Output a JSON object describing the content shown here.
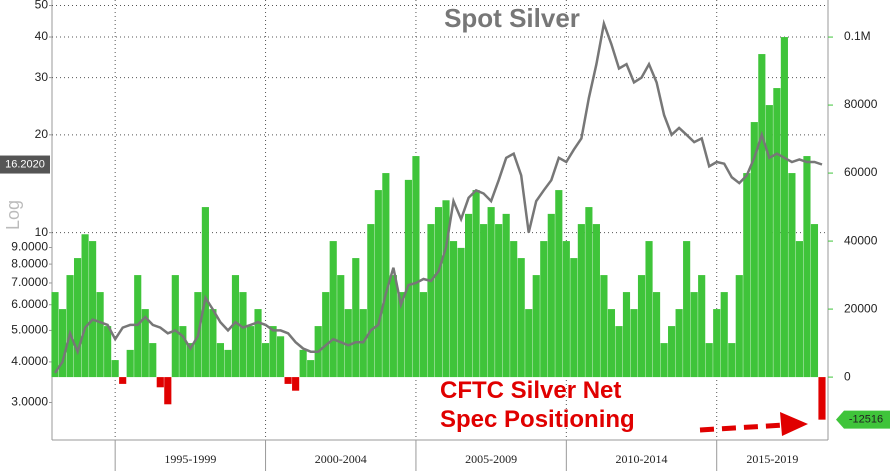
{
  "chart_data": {
    "type": "bar-line",
    "title": "Spot Silver",
    "y_axis_label": "Log",
    "log_scale": true,
    "grid": true,
    "xlim": [
      1992.9,
      2018.7
    ],
    "xticks": [
      1995,
      2000,
      2005,
      2010,
      2015
    ],
    "x_periods": [
      "1995-1999",
      "2000-2004",
      "2005-2009",
      "2010-2014",
      "2015-2019"
    ],
    "ylim": [
      2.3,
      52
    ],
    "yticks": [
      {
        "value": 3,
        "label": "3.0000"
      },
      {
        "value": 4,
        "label": "4.0000"
      },
      {
        "value": 5,
        "label": "5.0000"
      },
      {
        "value": 6,
        "label": "6.0000"
      },
      {
        "value": 7,
        "label": "7.0000"
      },
      {
        "value": 8,
        "label": "8.0000"
      },
      {
        "value": 9,
        "label": "9.0000"
      },
      10,
      20,
      30,
      40,
      50
    ],
    "y2lim": [
      -18500,
      110900
    ],
    "y2ticks": [
      0,
      20000,
      40000,
      60000,
      80000,
      {
        "value": 100000,
        "label": "0.1M"
      }
    ],
    "x": [
      1993,
      1993.25,
      1993.5,
      1993.75,
      1994,
      1994.25,
      1994.5,
      1994.75,
      1995,
      1995.25,
      1995.5,
      1995.75,
      1996,
      1996.25,
      1996.5,
      1996.75,
      1997,
      1997.25,
      1997.5,
      1997.75,
      1998,
      1998.25,
      1998.5,
      1998.75,
      1999,
      1999.25,
      1999.5,
      1999.75,
      2000,
      2000.25,
      2000.5,
      2000.75,
      2001,
      2001.25,
      2001.5,
      2001.75,
      2002,
      2002.25,
      2002.5,
      2002.75,
      2003,
      2003.25,
      2003.5,
      2003.75,
      2004,
      2004.25,
      2004.5,
      2004.75,
      2005,
      2005.25,
      2005.5,
      2005.75,
      2006,
      2006.25,
      2006.5,
      2006.75,
      2007,
      2007.25,
      2007.5,
      2007.75,
      2008,
      2008.25,
      2008.5,
      2008.75,
      2009,
      2009.25,
      2009.5,
      2009.75,
      2010,
      2010.25,
      2010.5,
      2010.75,
      2011,
      2011.25,
      2011.5,
      2011.75,
      2012,
      2012.25,
      2012.5,
      2012.75,
      2013,
      2013.25,
      2013.5,
      2013.75,
      2014,
      2014.25,
      2014.5,
      2014.75,
      2015,
      2015.25,
      2015.5,
      2015.75,
      2016,
      2016.25,
      2016.5,
      2016.75,
      2017,
      2017.25,
      2017.5,
      2017.75,
      2018,
      2018.25,
      2018.5
    ],
    "series": [
      {
        "name": "Spot Silver",
        "type": "line",
        "axis": "y",
        "color": "#777777",
        "values": [
          3.7,
          4.0,
          4.9,
          4.3,
          5.1,
          5.4,
          5.3,
          5.2,
          4.7,
          5.1,
          5.2,
          5.2,
          5.5,
          5.2,
          5.1,
          4.9,
          5.0,
          4.8,
          4.4,
          4.8,
          6.3,
          5.8,
          5.3,
          5.0,
          5.3,
          5.1,
          5.2,
          5.3,
          5.2,
          5.0,
          5.0,
          4.9,
          4.6,
          4.4,
          4.3,
          4.3,
          4.5,
          4.7,
          4.6,
          4.5,
          4.6,
          4.6,
          5.0,
          5.2,
          6.5,
          7.8,
          6.0,
          6.9,
          7.0,
          7.2,
          7.1,
          7.6,
          9.0,
          12.5,
          11.0,
          12.8,
          13.5,
          13.2,
          12.5,
          14.5,
          17.0,
          17.5,
          15.0,
          10.0,
          12.5,
          13.5,
          14.5,
          17.0,
          16.5,
          18.0,
          19.5,
          26.0,
          33,
          44,
          38,
          32,
          33,
          29,
          30,
          33,
          29,
          23,
          20,
          21,
          20,
          19,
          19.5,
          16,
          16.5,
          16.3,
          14.8,
          14.2,
          15,
          17,
          20,
          17,
          17.5,
          17,
          16.5,
          16.8,
          16.5,
          16.5,
          16.202
        ],
        "last_label": "16.2020"
      },
      {
        "name": "CFTC Silver Net Spec Positioning",
        "type": "bar",
        "axis": "y2",
        "color": "#3fc43a",
        "negative_color": "#e00000",
        "values": [
          25000,
          20000,
          30000,
          35000,
          42000,
          40000,
          25000,
          15000,
          5000,
          -2000,
          8000,
          30000,
          20000,
          10000,
          -3000,
          -8000,
          30000,
          15000,
          10000,
          25000,
          50000,
          20000,
          10000,
          8000,
          30000,
          25000,
          15000,
          20000,
          10000,
          15000,
          12000,
          -2000,
          -4000,
          8000,
          5000,
          15000,
          25000,
          40000,
          30000,
          20000,
          35000,
          20000,
          45000,
          55000,
          60000,
          30000,
          25000,
          58000,
          65000,
          25000,
          45000,
          50000,
          52000,
          40000,
          38000,
          48000,
          55000,
          45000,
          50000,
          45000,
          48000,
          40000,
          35000,
          20000,
          30000,
          40000,
          48000,
          55000,
          40000,
          35000,
          45000,
          50000,
          45000,
          30000,
          20000,
          15000,
          25000,
          20000,
          30000,
          40000,
          25000,
          10000,
          15000,
          20000,
          40000,
          25000,
          30000,
          10000,
          20000,
          25000,
          10000,
          30000,
          60000,
          75000,
          95000,
          80000,
          85000,
          100000,
          60000,
          40000,
          65000,
          45000,
          -12516
        ]
      }
    ]
  }
}
